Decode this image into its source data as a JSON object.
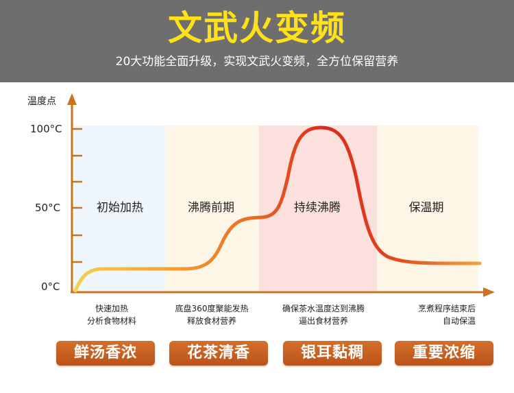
{
  "header": {
    "title": "文武火变频",
    "subtitle": "20大功能全面升级，实现文武火变频，全方位保留营养"
  },
  "axis": {
    "ylabel": "温度点",
    "ticks": [
      "100°C",
      "50°C",
      "0°C"
    ]
  },
  "phases": [
    {
      "label": "初始加热",
      "note_lines": [
        "快速加热",
        "分析食物材料"
      ],
      "color": "#eef6fc"
    },
    {
      "label": "沸腾前期",
      "note_lines": [
        "底盘360度聚能发热",
        "释放食材营养"
      ],
      "color": "#fdf6e6"
    },
    {
      "label": "持续沸腾",
      "note_lines": [
        "确保茶水温度达到沸腾",
        "逼出食材营养"
      ],
      "color": "#fbe0de"
    },
    {
      "label": "保温期",
      "note_lines": [
        "烹煮程序结束后",
        "自动保温"
      ],
      "color": "#fdf6e6"
    }
  ],
  "badges": [
    "鲜汤香浓",
    "花茶清香",
    "银耳黏稠",
    "重要浓缩"
  ],
  "colors": {
    "axis": "#c9731f",
    "curve_start": "#f7c64a",
    "curve_mid": "#e84a1c",
    "curve_peak": "#d9261c",
    "badge": "#c45f22"
  }
}
